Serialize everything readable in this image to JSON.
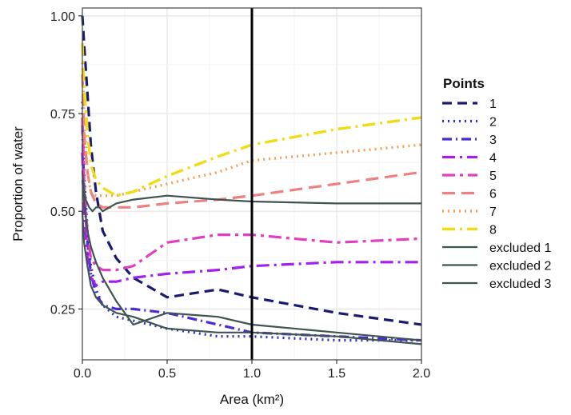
{
  "chart_data": {
    "type": "line",
    "xlabel": "Area (km²)",
    "ylabel": "Proportion of water",
    "xlim": [
      0,
      2.0
    ],
    "ylim": [
      0.12,
      1.02
    ],
    "x_ticks": [
      0.0,
      0.5,
      1.0,
      1.5,
      2.0
    ],
    "x_tick_labels": [
      "0.0",
      "0.5",
      "1.0",
      "1.5",
      "2.0"
    ],
    "y_ticks": [
      0.25,
      0.5,
      0.75,
      1.0
    ],
    "y_tick_labels": [
      "0.25",
      "0.50",
      "0.75",
      "1.00"
    ],
    "grid": true,
    "vline_x": 1.0,
    "legend_title": "Points",
    "legend_position": "right",
    "series": [
      {
        "name": "1",
        "color": "#1a1a6e",
        "dash": "12,7",
        "width": 3.2,
        "x": [
          0,
          0.01,
          0.03,
          0.05,
          0.08,
          0.12,
          0.2,
          0.3,
          0.5,
          0.8,
          1.0,
          1.5,
          2.0
        ],
        "y": [
          1.0,
          0.93,
          0.8,
          0.67,
          0.55,
          0.45,
          0.38,
          0.33,
          0.28,
          0.3,
          0.28,
          0.24,
          0.21
        ]
      },
      {
        "name": "2",
        "color": "#2b2fc4",
        "dash": "2,5",
        "width": 3.2,
        "x": [
          0,
          0.01,
          0.03,
          0.05,
          0.08,
          0.12,
          0.2,
          0.3,
          0.5,
          0.8,
          1.0,
          1.5,
          2.0
        ],
        "y": [
          0.78,
          0.6,
          0.45,
          0.36,
          0.3,
          0.26,
          0.23,
          0.22,
          0.2,
          0.18,
          0.18,
          0.17,
          0.17
        ]
      },
      {
        "name": "3",
        "color": "#4a2ad8",
        "dash": "12,5,2,5",
        "width": 3.2,
        "x": [
          0,
          0.01,
          0.03,
          0.05,
          0.08,
          0.12,
          0.2,
          0.3,
          0.5,
          0.8,
          1.0,
          1.5,
          2.0
        ],
        "y": [
          0.72,
          0.55,
          0.42,
          0.34,
          0.29,
          0.26,
          0.25,
          0.25,
          0.24,
          0.21,
          0.19,
          0.18,
          0.17
        ]
      },
      {
        "name": "4",
        "color": "#a020f0",
        "dash": "16,6,3,6",
        "width": 3.2,
        "x": [
          0,
          0.01,
          0.03,
          0.05,
          0.08,
          0.12,
          0.2,
          0.3,
          0.5,
          0.8,
          1.0,
          1.5,
          2.0
        ],
        "y": [
          0.65,
          0.5,
          0.38,
          0.33,
          0.31,
          0.32,
          0.32,
          0.33,
          0.34,
          0.35,
          0.36,
          0.37,
          0.37
        ]
      },
      {
        "name": "5",
        "color": "#e040c0",
        "dash": "16,6,4,6",
        "width": 3.2,
        "x": [
          0,
          0.01,
          0.03,
          0.05,
          0.08,
          0.12,
          0.2,
          0.3,
          0.5,
          0.8,
          1.0,
          1.5,
          2.0
        ],
        "y": [
          0.74,
          0.58,
          0.44,
          0.38,
          0.36,
          0.35,
          0.35,
          0.36,
          0.42,
          0.44,
          0.44,
          0.42,
          0.43
        ]
      },
      {
        "name": "6",
        "color": "#f08080",
        "dash": "16,8",
        "width": 3.2,
        "x": [
          0,
          0.01,
          0.03,
          0.05,
          0.08,
          0.12,
          0.2,
          0.3,
          0.5,
          0.8,
          1.0,
          1.5,
          2.0
        ],
        "y": [
          0.85,
          0.7,
          0.6,
          0.55,
          0.52,
          0.51,
          0.51,
          0.51,
          0.52,
          0.53,
          0.54,
          0.57,
          0.6
        ]
      },
      {
        "name": "7",
        "color": "#f5a05a",
        "dash": "2,5",
        "width": 3.4,
        "x": [
          0,
          0.01,
          0.03,
          0.05,
          0.08,
          0.12,
          0.2,
          0.3,
          0.5,
          0.8,
          1.0,
          1.5,
          2.0
        ],
        "y": [
          0.88,
          0.75,
          0.6,
          0.55,
          0.54,
          0.54,
          0.54,
          0.55,
          0.57,
          0.6,
          0.63,
          0.65,
          0.67
        ]
      },
      {
        "name": "8",
        "color": "#f0dc14",
        "dash": "16,6,3,6",
        "width": 3.4,
        "x": [
          0,
          0.01,
          0.03,
          0.05,
          0.08,
          0.12,
          0.2,
          0.3,
          0.5,
          0.8,
          1.0,
          1.5,
          2.0
        ],
        "y": [
          0.93,
          0.82,
          0.7,
          0.62,
          0.58,
          0.56,
          0.54,
          0.55,
          0.59,
          0.64,
          0.67,
          0.71,
          0.74
        ]
      },
      {
        "name": "excluded 1",
        "color": "#3e5450",
        "dash": "",
        "width": 2.2,
        "x": [
          0,
          0.01,
          0.02,
          0.04,
          0.06,
          0.08,
          0.1,
          0.12,
          0.2,
          0.3,
          0.5,
          0.8,
          1.0,
          1.5,
          2.0
        ],
        "y": [
          0.6,
          0.55,
          0.53,
          0.51,
          0.5,
          0.51,
          0.51,
          0.5,
          0.52,
          0.53,
          0.54,
          0.53,
          0.525,
          0.52,
          0.52
        ]
      },
      {
        "name": "excluded 2",
        "color": "#3e5450",
        "dash": "",
        "width": 2.2,
        "x": [
          0,
          0.01,
          0.03,
          0.05,
          0.08,
          0.12,
          0.2,
          0.3,
          0.5,
          0.8,
          1.0,
          1.5,
          2.0
        ],
        "y": [
          0.58,
          0.52,
          0.45,
          0.41,
          0.37,
          0.33,
          0.27,
          0.21,
          0.24,
          0.23,
          0.21,
          0.19,
          0.17
        ]
      },
      {
        "name": "excluded 3",
        "color": "#3e5450",
        "dash": "",
        "width": 2.2,
        "x": [
          0,
          0.01,
          0.03,
          0.05,
          0.08,
          0.12,
          0.2,
          0.3,
          0.5,
          0.8,
          1.0,
          1.5,
          2.0
        ],
        "y": [
          0.5,
          0.42,
          0.36,
          0.31,
          0.28,
          0.26,
          0.24,
          0.23,
          0.2,
          0.19,
          0.19,
          0.18,
          0.16
        ]
      }
    ]
  }
}
